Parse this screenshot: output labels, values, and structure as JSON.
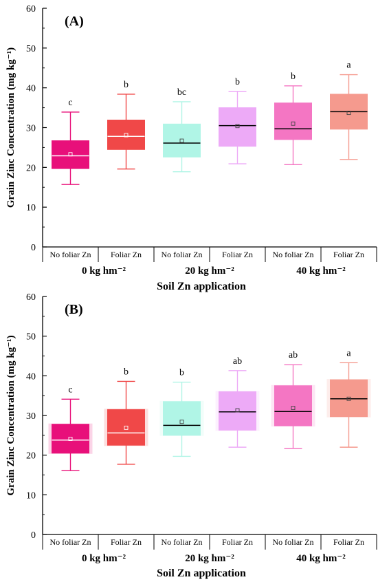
{
  "chart_data": [
    {
      "type": "box",
      "panel_label": "(A)",
      "ylabel": "Grain Zinc Concentration (mg kg⁻¹)",
      "xlabel": "Soil Zn application",
      "ylim": [
        0,
        60
      ],
      "yticks": [
        0,
        10,
        20,
        30,
        40,
        50,
        60
      ],
      "grid": false,
      "categories": [
        "No foliar Zn",
        "Foliar Zn",
        "No foliar Zn",
        "Foliar Zn",
        "No foliar Zn",
        "Foliar Zn"
      ],
      "groups": [
        "0  kg hm⁻²",
        "20  kg hm⁻²",
        "40  kg hm⁻²"
      ],
      "boxes": [
        {
          "min": 15.7,
          "q1": 19.7,
          "median": 22.9,
          "q3": 26.7,
          "max": 33.9,
          "mean": 23.3,
          "letter": "c",
          "color": "#e8107a",
          "median_color": "#ffffff"
        },
        {
          "min": 19.6,
          "q1": 24.5,
          "median": 27.8,
          "q3": 31.9,
          "max": 38.4,
          "mean": 28.1,
          "letter": "b",
          "color": "#f04848",
          "median_color": "#ffffff"
        },
        {
          "min": 18.9,
          "q1": 22.6,
          "median": 26.1,
          "q3": 30.9,
          "max": 36.5,
          "mean": 26.7,
          "letter": "bc",
          "color": "#b0f5e6",
          "median_color": "#000000"
        },
        {
          "min": 20.9,
          "q1": 25.3,
          "median": 30.5,
          "q3": 35.0,
          "max": 39.1,
          "mean": 30.4,
          "letter": "b",
          "color": "#edaaf7",
          "median_color": "#000000"
        },
        {
          "min": 20.7,
          "q1": 27.0,
          "median": 29.7,
          "q3": 36.2,
          "max": 40.5,
          "mean": 31.0,
          "letter": "b",
          "color": "#f476c3",
          "median_color": "#000000"
        },
        {
          "min": 22.0,
          "q1": 29.6,
          "median": 34.0,
          "q3": 38.4,
          "max": 43.3,
          "mean": 33.7,
          "letter": "a",
          "color": "#f59a8e",
          "median_color": "#000000"
        }
      ]
    },
    {
      "type": "box",
      "panel_label": "(B)",
      "ylabel": "Grain Zinc Concentration (mg kg⁻¹)",
      "xlabel": "Soil Zn application",
      "ylim": [
        0,
        60
      ],
      "yticks": [
        0,
        10,
        20,
        30,
        40,
        50,
        60
      ],
      "grid": false,
      "categories": [
        "No foliar Zn",
        "Foliar Zn",
        "No foliar Zn",
        "Foliar Zn",
        "No foliar Zn",
        "Foliar Zn"
      ],
      "groups": [
        "0  kg hm⁻²",
        "20  kg hm⁻²",
        "40  kg hm⁻²"
      ],
      "boxes": [
        {
          "min": 16.1,
          "q1": 20.5,
          "median": 23.8,
          "q3": 27.8,
          "max": 34.1,
          "mean": 24.1,
          "letter": "c",
          "color": "#e8107a",
          "median_color": "#ffffff"
        },
        {
          "min": 17.7,
          "q1": 22.5,
          "median": 25.6,
          "q3": 31.5,
          "max": 38.6,
          "mean": 26.9,
          "letter": "b",
          "color": "#f04848",
          "median_color": "#ffffff"
        },
        {
          "min": 19.7,
          "q1": 25.0,
          "median": 27.5,
          "q3": 33.5,
          "max": 38.4,
          "mean": 28.4,
          "letter": "b",
          "color": "#b0f5e6",
          "median_color": "#000000"
        },
        {
          "min": 22.0,
          "q1": 26.3,
          "median": 30.9,
          "q3": 36.0,
          "max": 41.3,
          "mean": 31.3,
          "letter": "ab",
          "color": "#edaaf7",
          "median_color": "#000000"
        },
        {
          "min": 21.7,
          "q1": 27.4,
          "median": 31.0,
          "q3": 37.5,
          "max": 42.8,
          "mean": 31.9,
          "letter": "ab",
          "color": "#f476c3",
          "median_color": "#000000"
        },
        {
          "min": 22.0,
          "q1": 29.7,
          "median": 34.2,
          "q3": 39.0,
          "max": 43.3,
          "mean": 34.2,
          "letter": "a",
          "color": "#f59a8e",
          "median_color": "#000000"
        }
      ]
    }
  ]
}
